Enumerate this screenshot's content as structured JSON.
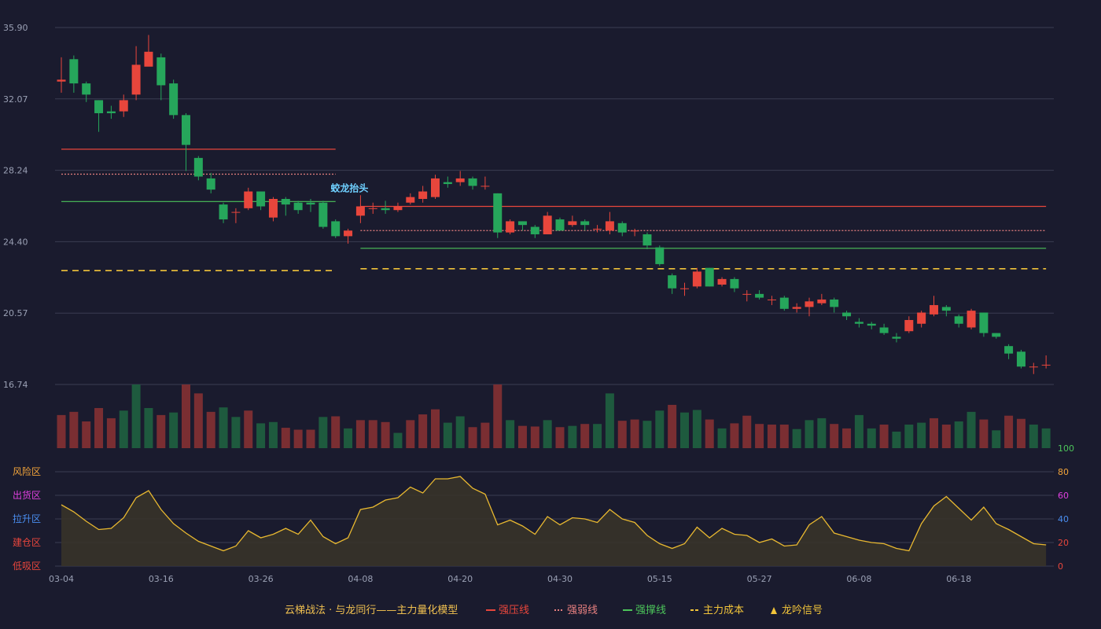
{
  "colors": {
    "background": "#1a1b2e",
    "grid": "#3a3c52",
    "up": "#e8463c",
    "down": "#26a65b",
    "vol_up": "#7a2e32",
    "vol_down": "#1e5a3e",
    "resistance": "#e8463c",
    "weak": "#e88080",
    "support": "#4cc45a",
    "cost": "#f2c43a",
    "osc_line": "#e8b830",
    "osc_fill": "#3a3428",
    "signal": "#6fd0ff"
  },
  "price_axis": {
    "labels": [
      "35.90",
      "32.07",
      "28.24",
      "24.40",
      "20.57",
      "16.74"
    ]
  },
  "osc_axis": {
    "right_labels": [
      "100",
      "80",
      "60",
      "40",
      "20",
      "0"
    ],
    "right_colors": [
      "#4cc45a",
      "#f2a43a",
      "#e040e0",
      "#4a8ef0",
      "#e8463c",
      "#e8463c"
    ],
    "zones": [
      {
        "label": "风险区",
        "color": "#f2a43a"
      },
      {
        "label": "出货区",
        "color": "#e040e0"
      },
      {
        "label": "拉升区",
        "color": "#4a8ef0"
      },
      {
        "label": "建仓区",
        "color": "#e8463c"
      },
      {
        "label": "低吸区",
        "color": "#e8463c"
      }
    ]
  },
  "x_axis": {
    "labels": [
      {
        "i": 0,
        "text": "03-04"
      },
      {
        "i": 8,
        "text": "03-16"
      },
      {
        "i": 16,
        "text": "03-26"
      },
      {
        "i": 24,
        "text": "04-08"
      },
      {
        "i": 32,
        "text": "04-20"
      },
      {
        "i": 40,
        "text": "04-30"
      },
      {
        "i": 48,
        "text": "05-15"
      },
      {
        "i": 56,
        "text": "05-27"
      },
      {
        "i": 64,
        "text": "06-08"
      },
      {
        "i": 72,
        "text": "06-18"
      }
    ]
  },
  "signal": {
    "text": "蛟龙抬头",
    "index": 24
  },
  "legend": {
    "title": "云梯战法 · 与龙同行——主力量化模型",
    "items": [
      {
        "label": "强压线",
        "color": "#e8463c",
        "style": "solid"
      },
      {
        "label": "强弱线",
        "color": "#e88080",
        "style": "dotted"
      },
      {
        "label": "强撑线",
        "color": "#4cc45a",
        "style": "solid"
      },
      {
        "label": "主力成本",
        "color": "#f2c43a",
        "style": "dashed"
      },
      {
        "label": "龙吟信号",
        "color": "#f2c43a",
        "style": "triangle"
      }
    ]
  },
  "chart_data": {
    "type": "candlestick",
    "y_range": [
      16.74,
      35.9
    ],
    "osc_range": [
      0,
      100
    ],
    "candles": [
      [
        33.0,
        33.1,
        34.3,
        32.4
      ],
      [
        34.2,
        32.9,
        34.4,
        32.4
      ],
      [
        32.9,
        32.3,
        33.0,
        31.9
      ],
      [
        32.0,
        31.3,
        32.0,
        30.3
      ],
      [
        31.4,
        31.3,
        31.7,
        31.0
      ],
      [
        31.4,
        32.0,
        32.3,
        31.1
      ],
      [
        32.3,
        33.9,
        34.9,
        32.0
      ],
      [
        33.8,
        34.6,
        35.5,
        33.9
      ],
      [
        34.3,
        32.8,
        34.5,
        32.0
      ],
      [
        32.9,
        31.2,
        33.1,
        31.0
      ],
      [
        31.2,
        29.6,
        31.3,
        28.2
      ],
      [
        28.9,
        27.9,
        29.0,
        27.7
      ],
      [
        27.8,
        27.2,
        28.1,
        27.0
      ],
      [
        26.4,
        25.6,
        26.5,
        25.4
      ],
      [
        26.0,
        26.0,
        26.2,
        25.4
      ],
      [
        26.2,
        27.1,
        27.3,
        26.1
      ],
      [
        27.1,
        26.3,
        27.1,
        26.1
      ],
      [
        25.7,
        26.7,
        26.8,
        25.5
      ],
      [
        26.7,
        26.4,
        26.8,
        25.8
      ],
      [
        26.5,
        26.1,
        26.6,
        25.9
      ],
      [
        26.5,
        26.4,
        26.7,
        26.0
      ],
      [
        26.5,
        25.2,
        26.6,
        25.1
      ],
      [
        25.5,
        24.7,
        25.6,
        24.6
      ],
      [
        24.7,
        25.0,
        25.1,
        24.3
      ],
      [
        25.8,
        26.3,
        26.9,
        25.4
      ],
      [
        26.2,
        26.2,
        26.5,
        25.9
      ],
      [
        26.2,
        26.1,
        26.6,
        25.9
      ],
      [
        26.1,
        26.3,
        26.5,
        26.0
      ],
      [
        26.5,
        26.8,
        27.0,
        26.4
      ],
      [
        26.7,
        27.1,
        27.4,
        26.5
      ],
      [
        26.8,
        27.8,
        28.0,
        26.7
      ],
      [
        27.6,
        27.5,
        27.9,
        27.3
      ],
      [
        27.6,
        27.8,
        28.2,
        27.4
      ],
      [
        27.8,
        27.4,
        27.9,
        27.2
      ],
      [
        27.4,
        27.4,
        27.9,
        27.2
      ],
      [
        27.0,
        24.9,
        27.0,
        24.6
      ],
      [
        24.9,
        25.5,
        25.6,
        24.8
      ],
      [
        25.5,
        25.3,
        25.5,
        25.0
      ],
      [
        25.2,
        24.8,
        25.3,
        24.6
      ],
      [
        24.8,
        25.8,
        26.0,
        24.8
      ],
      [
        25.6,
        25.0,
        25.7,
        25.0
      ],
      [
        25.3,
        25.5,
        25.8,
        25.2
      ],
      [
        25.5,
        25.3,
        25.6,
        25.0
      ],
      [
        25.1,
        25.1,
        25.3,
        24.9
      ],
      [
        25.0,
        25.5,
        26.0,
        24.8
      ],
      [
        25.4,
        24.9,
        25.5,
        24.7
      ],
      [
        25.0,
        25.0,
        25.1,
        24.7
      ],
      [
        24.8,
        24.2,
        24.9,
        24.0
      ],
      [
        24.1,
        23.2,
        24.2,
        23.1
      ],
      [
        22.6,
        21.9,
        22.7,
        21.6
      ],
      [
        21.9,
        21.9,
        22.2,
        21.5
      ],
      [
        22.0,
        22.8,
        23.0,
        21.9
      ],
      [
        23.0,
        22.0,
        23.0,
        22.0
      ],
      [
        22.1,
        22.4,
        22.5,
        22.0
      ],
      [
        22.4,
        21.9,
        22.5,
        21.7
      ],
      [
        21.6,
        21.6,
        21.8,
        21.2
      ],
      [
        21.6,
        21.4,
        21.8,
        21.3
      ],
      [
        21.3,
        21.3,
        21.5,
        21.0
      ],
      [
        21.4,
        20.8,
        21.5,
        20.7
      ],
      [
        20.8,
        20.9,
        21.1,
        20.6
      ],
      [
        20.9,
        21.2,
        21.4,
        20.4
      ],
      [
        21.1,
        21.3,
        21.6,
        21.0
      ],
      [
        21.3,
        20.9,
        21.4,
        20.6
      ],
      [
        20.6,
        20.4,
        20.7,
        20.2
      ],
      [
        20.1,
        20.0,
        20.3,
        19.8
      ],
      [
        20.0,
        19.9,
        20.1,
        19.7
      ],
      [
        19.8,
        19.5,
        20.0,
        19.4
      ],
      [
        19.3,
        19.2,
        19.5,
        19.0
      ],
      [
        19.6,
        20.2,
        20.4,
        19.5
      ],
      [
        20.0,
        20.6,
        20.7,
        19.8
      ],
      [
        20.5,
        21.0,
        21.5,
        20.4
      ],
      [
        20.9,
        20.7,
        21.0,
        20.4
      ],
      [
        20.4,
        20.0,
        20.5,
        19.8
      ],
      [
        19.8,
        20.7,
        20.8,
        19.7
      ],
      [
        20.6,
        19.5,
        20.6,
        19.3
      ],
      [
        19.5,
        19.3,
        19.5,
        19.2
      ],
      [
        18.8,
        18.4,
        18.9,
        18.1
      ],
      [
        18.5,
        17.7,
        18.6,
        17.6
      ],
      [
        17.7,
        17.7,
        17.9,
        17.3
      ],
      [
        17.8,
        17.8,
        18.3,
        17.6
      ]
    ],
    "volume": [
      52,
      57,
      42,
      63,
      47,
      59,
      100,
      63,
      52,
      56,
      100,
      86,
      57,
      64,
      49,
      59,
      39,
      41,
      32,
      29,
      29,
      49,
      50,
      31,
      44,
      44,
      41,
      24,
      44,
      53,
      61,
      40,
      50,
      33,
      40,
      100,
      44,
      35,
      34,
      44,
      33,
      35,
      38,
      38,
      86,
      43,
      45,
      43,
      59,
      68,
      56,
      60,
      45,
      31,
      39,
      51,
      38,
      37,
      37,
      30,
      44,
      47,
      38,
      31,
      52,
      31,
      37,
      26,
      37,
      40,
      47,
      37,
      42,
      57,
      45,
      28,
      51,
      46,
      37,
      31
    ],
    "volume_up": [
      true,
      true,
      true,
      true,
      true,
      false,
      false,
      false,
      true,
      false,
      true,
      true,
      true,
      false,
      false,
      true,
      false,
      false,
      true,
      true,
      true,
      false,
      true,
      false,
      true,
      true,
      true,
      false,
      true,
      true,
      true,
      false,
      false,
      true,
      true,
      true,
      false,
      true,
      true,
      false,
      true,
      false,
      true,
      false,
      false,
      true,
      true,
      false,
      false,
      true,
      false,
      false,
      true,
      false,
      true,
      true,
      true,
      true,
      true,
      false,
      false,
      false,
      true,
      true,
      false,
      false,
      true,
      false,
      false,
      false,
      true,
      true,
      false,
      false,
      true,
      false,
      true,
      true,
      false,
      false
    ],
    "oscillator": [
      52,
      46,
      38,
      31,
      32,
      41,
      58,
      64,
      48,
      36,
      28,
      21,
      17,
      13,
      17,
      30,
      24,
      27,
      32,
      27,
      39,
      25,
      19,
      24,
      48,
      50,
      56,
      58,
      67,
      62,
      74,
      74,
      76,
      66,
      61,
      35,
      39,
      34,
      27,
      42,
      35,
      41,
      40,
      37,
      48,
      40,
      37,
      26,
      19,
      15,
      19,
      33,
      24,
      32,
      27,
      26,
      20,
      23,
      17,
      18,
      35,
      42,
      28,
      25,
      22,
      20,
      19,
      15,
      13,
      36,
      51,
      59,
      49,
      39,
      50,
      36,
      31,
      25,
      19,
      18
    ],
    "levels": [
      {
        "name": "强压线",
        "type": "resistance",
        "segments": [
          [
            0,
            22,
            29.37
          ],
          [
            24,
            79,
            26.3
          ]
        ]
      },
      {
        "name": "强弱线",
        "type": "weak",
        "segments": [
          [
            0,
            22,
            28.03
          ],
          [
            24,
            79,
            25.0
          ]
        ]
      },
      {
        "name": "强撑线",
        "type": "support",
        "segments": [
          [
            0,
            22,
            26.56
          ],
          [
            24,
            79,
            24.05
          ]
        ]
      },
      {
        "name": "主力成本",
        "type": "cost",
        "segments": [
          [
            0,
            22,
            22.85
          ],
          [
            24,
            79,
            22.95
          ]
        ]
      }
    ]
  }
}
